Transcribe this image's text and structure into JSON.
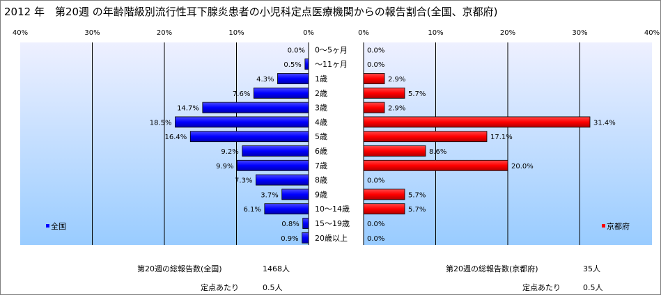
{
  "title": "2012 年　第20週 の年齢階級別流行性耳下腺炎患者の小児科定点医療機関からの報告割合(全国、京都府)",
  "chart_data": [
    {
      "type": "bar",
      "orientation": "horizontal",
      "direction": "right-to-left",
      "categories": [
        "0～5ヶ月",
        "～11ヶ月",
        "1歳",
        "2歳",
        "3歳",
        "4歳",
        "5歳",
        "6歳",
        "7歳",
        "8歳",
        "9歳",
        "10～14歳",
        "15～19歳",
        "20歳以上"
      ],
      "series": [
        {
          "name": "全国",
          "values": [
            0.0,
            0.5,
            4.3,
            7.6,
            14.7,
            18.5,
            16.4,
            9.2,
            9.9,
            7.3,
            3.7,
            6.1,
            0.8,
            0.9
          ],
          "labels": [
            "0.0%",
            "0.5%",
            "4.3%",
            "7.6%",
            "14.7%",
            "18.5%",
            "16.4%",
            "9.2%",
            "9.9%",
            "7.3%",
            "3.7%",
            "6.1%",
            "0.8%",
            "0.9%"
          ],
          "color": "#0000ff"
        }
      ],
      "xlim": [
        0,
        40
      ],
      "ticks": [
        "40%",
        "30%",
        "20%",
        "10%",
        "0%"
      ],
      "tick_values": [
        40,
        30,
        20,
        10,
        0
      ],
      "grid": true,
      "legend": "bottom-left"
    },
    {
      "type": "bar",
      "orientation": "horizontal",
      "direction": "left-to-right",
      "categories": [
        "0～5ヶ月",
        "～11ヶ月",
        "1歳",
        "2歳",
        "3歳",
        "4歳",
        "5歳",
        "6歳",
        "7歳",
        "8歳",
        "9歳",
        "10～14歳",
        "15～19歳",
        "20歳以上"
      ],
      "series": [
        {
          "name": "京都府",
          "values": [
            0.0,
            0.0,
            2.9,
            5.7,
            2.9,
            31.4,
            17.1,
            8.6,
            20.0,
            0.0,
            5.7,
            5.7,
            0.0,
            0.0
          ],
          "labels": [
            "0.0%",
            "0.0%",
            "2.9%",
            "5.7%",
            "2.9%",
            "31.4%",
            "17.1%",
            "8.6%",
            "20.0%",
            "0.0%",
            "5.7%",
            "5.7%",
            "0.0%",
            "0.0%"
          ],
          "color": "#ff0000"
        }
      ],
      "xlim": [
        0,
        40
      ],
      "ticks": [
        "0%",
        "10%",
        "20%",
        "30%",
        "40%"
      ],
      "tick_values": [
        0,
        10,
        20,
        30,
        40
      ],
      "grid": true,
      "legend": "bottom-right"
    }
  ],
  "footer": {
    "national_total_label": "第20週の総報告数(全国)",
    "national_total_value": "1468人",
    "national_per_label": "定点あたり",
    "national_per_value": "0.5人",
    "kyoto_total_label": "第20週の総報告数(京都府)",
    "kyoto_total_value": "35人",
    "kyoto_per_label": "定点あたり",
    "kyoto_per_value": "0.5人"
  }
}
